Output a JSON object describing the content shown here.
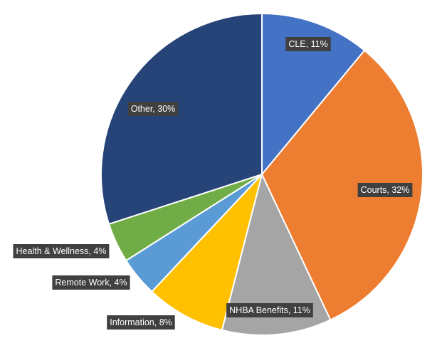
{
  "chart_data": {
    "type": "pie",
    "title": "",
    "start": "12 o'clock",
    "direction": "clockwise",
    "legend": "none",
    "slices": [
      {
        "label": "CLE",
        "value": 11,
        "display": "CLE, 11%",
        "color": "#4472C4"
      },
      {
        "label": "Courts",
        "value": 32,
        "display": "Courts, 32%",
        "color": "#ED7D31"
      },
      {
        "label": "NHBA Benefits",
        "value": 11,
        "display": "NHBA Benefits, 11%",
        "color": "#A5A5A5"
      },
      {
        "label": "Information",
        "value": 8,
        "display": "Information, 8%",
        "color": "#FFC000"
      },
      {
        "label": "Remote Work",
        "value": 4,
        "display": "Remote Work, 4%",
        "color": "#5B9BD5"
      },
      {
        "label": "Health & Wellness",
        "value": 4,
        "display": "Health & Wellness, 4%",
        "color": "#70AD47"
      },
      {
        "label": "Other",
        "value": 30,
        "display": "Other, 30%",
        "color": "#264478"
      }
    ]
  }
}
